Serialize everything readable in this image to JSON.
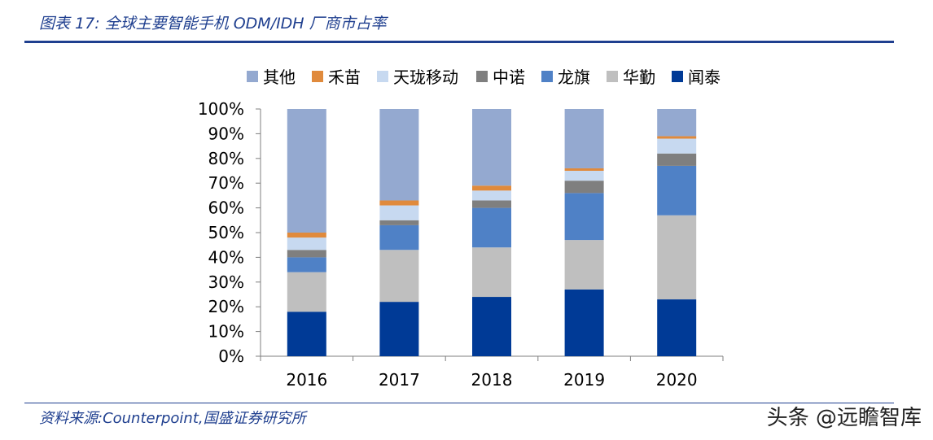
{
  "figure_title": "图表 17:  全球主要智能手机 ODM/IDH 厂商市占率",
  "source": "资料来源:Counterpoint,国盛证券研究所",
  "watermark": "头条 @远瞻智库",
  "chart_data": {
    "type": "bar",
    "stacked": true,
    "categories": [
      "2016",
      "2017",
      "2018",
      "2019",
      "2020"
    ],
    "y_ticks": [
      "0%",
      "10%",
      "20%",
      "30%",
      "40%",
      "50%",
      "60%",
      "70%",
      "80%",
      "90%",
      "100%"
    ],
    "ylim": [
      0,
      100
    ],
    "legend_position": "top",
    "series": [
      {
        "name": "闻泰",
        "color": "#003a96",
        "values": [
          18,
          22,
          24,
          27,
          23
        ]
      },
      {
        "name": "华勤",
        "color": "#bfbfbf",
        "values": [
          16,
          21,
          20,
          20,
          34
        ]
      },
      {
        "name": "龙旗",
        "color": "#4f81c6",
        "values": [
          6,
          10,
          16,
          19,
          20
        ]
      },
      {
        "name": "中诺",
        "color": "#7f7f7f",
        "values": [
          3,
          2,
          3,
          5,
          5
        ]
      },
      {
        "name": "天珑移动",
        "color": "#c7d9f0",
        "values": [
          5,
          6,
          4,
          4,
          6
        ]
      },
      {
        "name": "禾苗",
        "color": "#e08a3c",
        "values": [
          2,
          2,
          2,
          1,
          1
        ]
      },
      {
        "name": "其他",
        "color": "#94a9d0",
        "values": [
          50,
          37,
          31,
          24,
          11
        ]
      }
    ]
  }
}
